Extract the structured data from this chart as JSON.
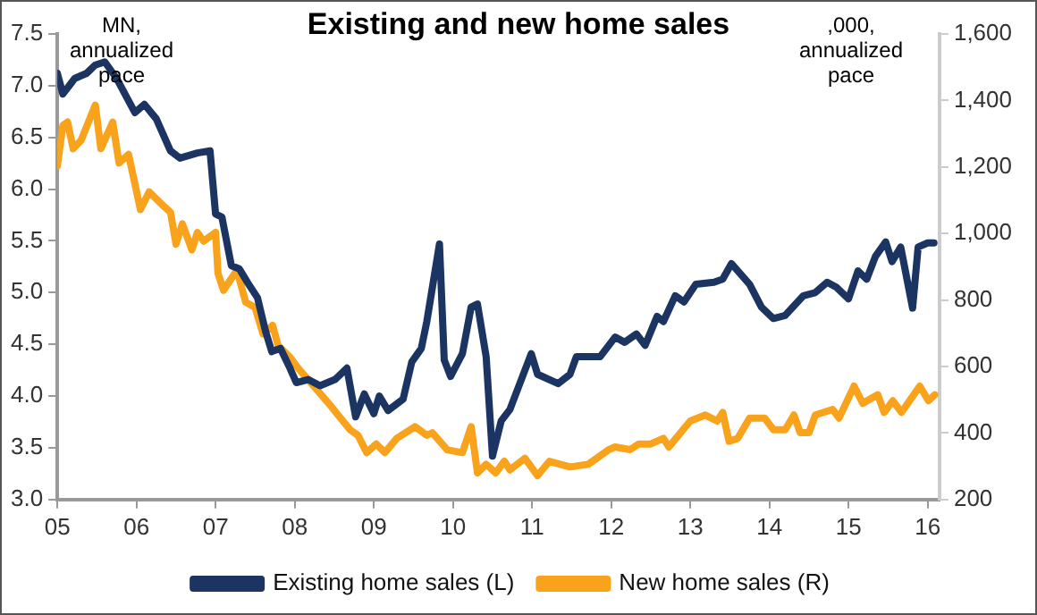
{
  "chart_data": {
    "type": "line",
    "title": "Existing and new home sales",
    "annotations": [
      "MN, annualized pace",
      ",000, annualized pace"
    ],
    "xlim": [
      2005,
      2016.15
    ],
    "xticks": [
      {
        "value": 2005,
        "label": "05"
      },
      {
        "value": 2006,
        "label": "06"
      },
      {
        "value": 2007,
        "label": "07"
      },
      {
        "value": 2008,
        "label": "08"
      },
      {
        "value": 2009,
        "label": "09"
      },
      {
        "value": 2010,
        "label": "10"
      },
      {
        "value": 2011,
        "label": "11"
      },
      {
        "value": 2012,
        "label": "12"
      },
      {
        "value": 2013,
        "label": "13"
      },
      {
        "value": 2014,
        "label": "14"
      },
      {
        "value": 2015,
        "label": "15"
      },
      {
        "value": 2016,
        "label": "16"
      }
    ],
    "ylim": [
      3,
      7.5
    ],
    "yticks": [
      {
        "value": 3,
        "label": "3.0"
      },
      {
        "value": 3.5,
        "label": "3.5"
      },
      {
        "value": 4,
        "label": "4.0"
      },
      {
        "value": 4.5,
        "label": "4.5"
      },
      {
        "value": 5,
        "label": "5.0"
      },
      {
        "value": 5.5,
        "label": "5.5"
      },
      {
        "value": 6,
        "label": "6.0"
      },
      {
        "value": 6.5,
        "label": "6.5"
      },
      {
        "value": 7,
        "label": "7.0"
      },
      {
        "value": 7.5,
        "label": "7.5"
      }
    ],
    "y2lim": [
      200,
      1600
    ],
    "y2ticks": [
      {
        "value": 200,
        "label": "200"
      },
      {
        "value": 400,
        "label": "400"
      },
      {
        "value": 600,
        "label": "600"
      },
      {
        "value": 800,
        "label": "800"
      },
      {
        "value": 1000,
        "label": "1,000"
      },
      {
        "value": 1200,
        "label": "1,200"
      },
      {
        "value": 1400,
        "label": "1,400"
      },
      {
        "value": 1600,
        "label": "1,600"
      }
    ],
    "grid": false,
    "legend": "bottom",
    "series": [
      {
        "name": "Existing home sales (L)",
        "color": "#1b3461",
        "x": [
          2005,
          2005.07,
          2005.22,
          2005.37,
          2005.48,
          2005.6,
          2005.75,
          2005.98,
          2006.1,
          2006.25,
          2006.43,
          2006.55,
          2006.77,
          2006.93,
          2007,
          2007.08,
          2007.2,
          2007.3,
          2007.41,
          2007.53,
          2007.63,
          2007.71,
          2007.82,
          2007.94,
          2008.02,
          2008.17,
          2008.32,
          2008.51,
          2008.66,
          2008.77,
          2008.88,
          2009,
          2009.07,
          2009.18,
          2009.37,
          2009.48,
          2009.6,
          2009.67,
          2009.83,
          2009.89,
          2009.97,
          2010.12,
          2010.23,
          2010.31,
          2010.42,
          2010.5,
          2010.61,
          2010.72,
          2010.99,
          2011.07,
          2011.33,
          2011.48,
          2011.56,
          2011.86,
          2012.05,
          2012.17,
          2012.32,
          2012.43,
          2012.58,
          2012.66,
          2012.81,
          2012.92,
          2013.07,
          2013.3,
          2013.41,
          2013.52,
          2013.75,
          2013.9,
          2014.05,
          2014.2,
          2014.43,
          2014.58,
          2014.73,
          2014.85,
          2015,
          2015.12,
          2015.23,
          2015.34,
          2015.47,
          2015.55,
          2015.66,
          2015.81,
          2015.88,
          2016,
          2016.08
        ],
        "values": [
          7.12,
          6.92,
          7.07,
          7.12,
          7.2,
          7.23,
          7.07,
          6.74,
          6.82,
          6.68,
          6.37,
          6.3,
          6.35,
          6.37,
          5.76,
          5.73,
          5.26,
          5.23,
          5.09,
          4.95,
          4.63,
          4.43,
          4.46,
          4.27,
          4.13,
          4.16,
          4.1,
          4.16,
          4.27,
          3.8,
          4.02,
          3.83,
          4,
          3.86,
          3.97,
          4.33,
          4.46,
          4.72,
          5.47,
          4.35,
          4.19,
          4.41,
          4.86,
          4.89,
          4.38,
          3.42,
          3.76,
          3.87,
          4.41,
          4.21,
          4.12,
          4.21,
          4.38,
          4.38,
          4.57,
          4.52,
          4.6,
          4.49,
          4.77,
          4.72,
          4.97,
          4.91,
          5.08,
          5.1,
          5.13,
          5.28,
          5.08,
          4.86,
          4.75,
          4.78,
          4.97,
          5,
          5.1,
          5.05,
          4.94,
          5.21,
          5.13,
          5.35,
          5.49,
          5.3,
          5.44,
          4.85,
          5.44,
          5.48,
          5.48
        ]
      },
      {
        "name": "New home sales (R)",
        "color": "#f9a21c",
        "axis": "y2",
        "x": [
          2005,
          2005.07,
          2005.13,
          2005.2,
          2005.3,
          2005.48,
          2005.55,
          2005.7,
          2005.78,
          2005.9,
          2006.05,
          2006.16,
          2006.35,
          2006.43,
          2006.5,
          2006.58,
          2006.7,
          2006.77,
          2006.85,
          2007,
          2007.03,
          2007.1,
          2007.27,
          2007.38,
          2007.5,
          2007.6,
          2007.72,
          2007.79,
          2007.94,
          2008.05,
          2008.24,
          2008.43,
          2008.58,
          2008.7,
          2008.8,
          2008.91,
          2009.03,
          2009.14,
          2009.29,
          2009.52,
          2009.67,
          2009.74,
          2009.93,
          2010.12,
          2010.23,
          2010.31,
          2010.42,
          2010.54,
          2010.65,
          2010.72,
          2010.91,
          2011.07,
          2011.22,
          2011.48,
          2011.71,
          2011.97,
          2012.05,
          2012.24,
          2012.35,
          2012.5,
          2012.66,
          2012.73,
          2012.85,
          2013,
          2013.19,
          2013.34,
          2013.41,
          2013.49,
          2013.6,
          2013.75,
          2013.94,
          2014.05,
          2014.2,
          2014.31,
          2014.39,
          2014.5,
          2014.58,
          2014.8,
          2014.88,
          2015.07,
          2015.18,
          2015.3,
          2015.37,
          2015.45,
          2015.56,
          2015.67,
          2015.9,
          2016.01,
          2016.09
        ],
        "values": [
          1203,
          1325,
          1335,
          1255,
          1280,
          1386,
          1255,
          1335,
          1212,
          1238,
          1072,
          1125,
          1081,
          1064,
          968,
          1029,
          951,
          1003,
          977,
          1003,
          881,
          829,
          890,
          794,
          777,
          698,
          724,
          663,
          628,
          593,
          541,
          489,
          445,
          410,
          393,
          341,
          367,
          341,
          384,
          419,
          393,
          401,
          349,
          341,
          419,
          280,
          306,
          280,
          315,
          289,
          324,
          272,
          315,
          298,
          306,
          350,
          358,
          350,
          367,
          367,
          384,
          358,
          393,
          436,
          454,
          436,
          462,
          375,
          384,
          445,
          445,
          410,
          410,
          454,
          401,
          401,
          454,
          471,
          445,
          541,
          489,
          506,
          515,
          462,
          497,
          462,
          541,
          497,
          515
        ]
      }
    ]
  }
}
